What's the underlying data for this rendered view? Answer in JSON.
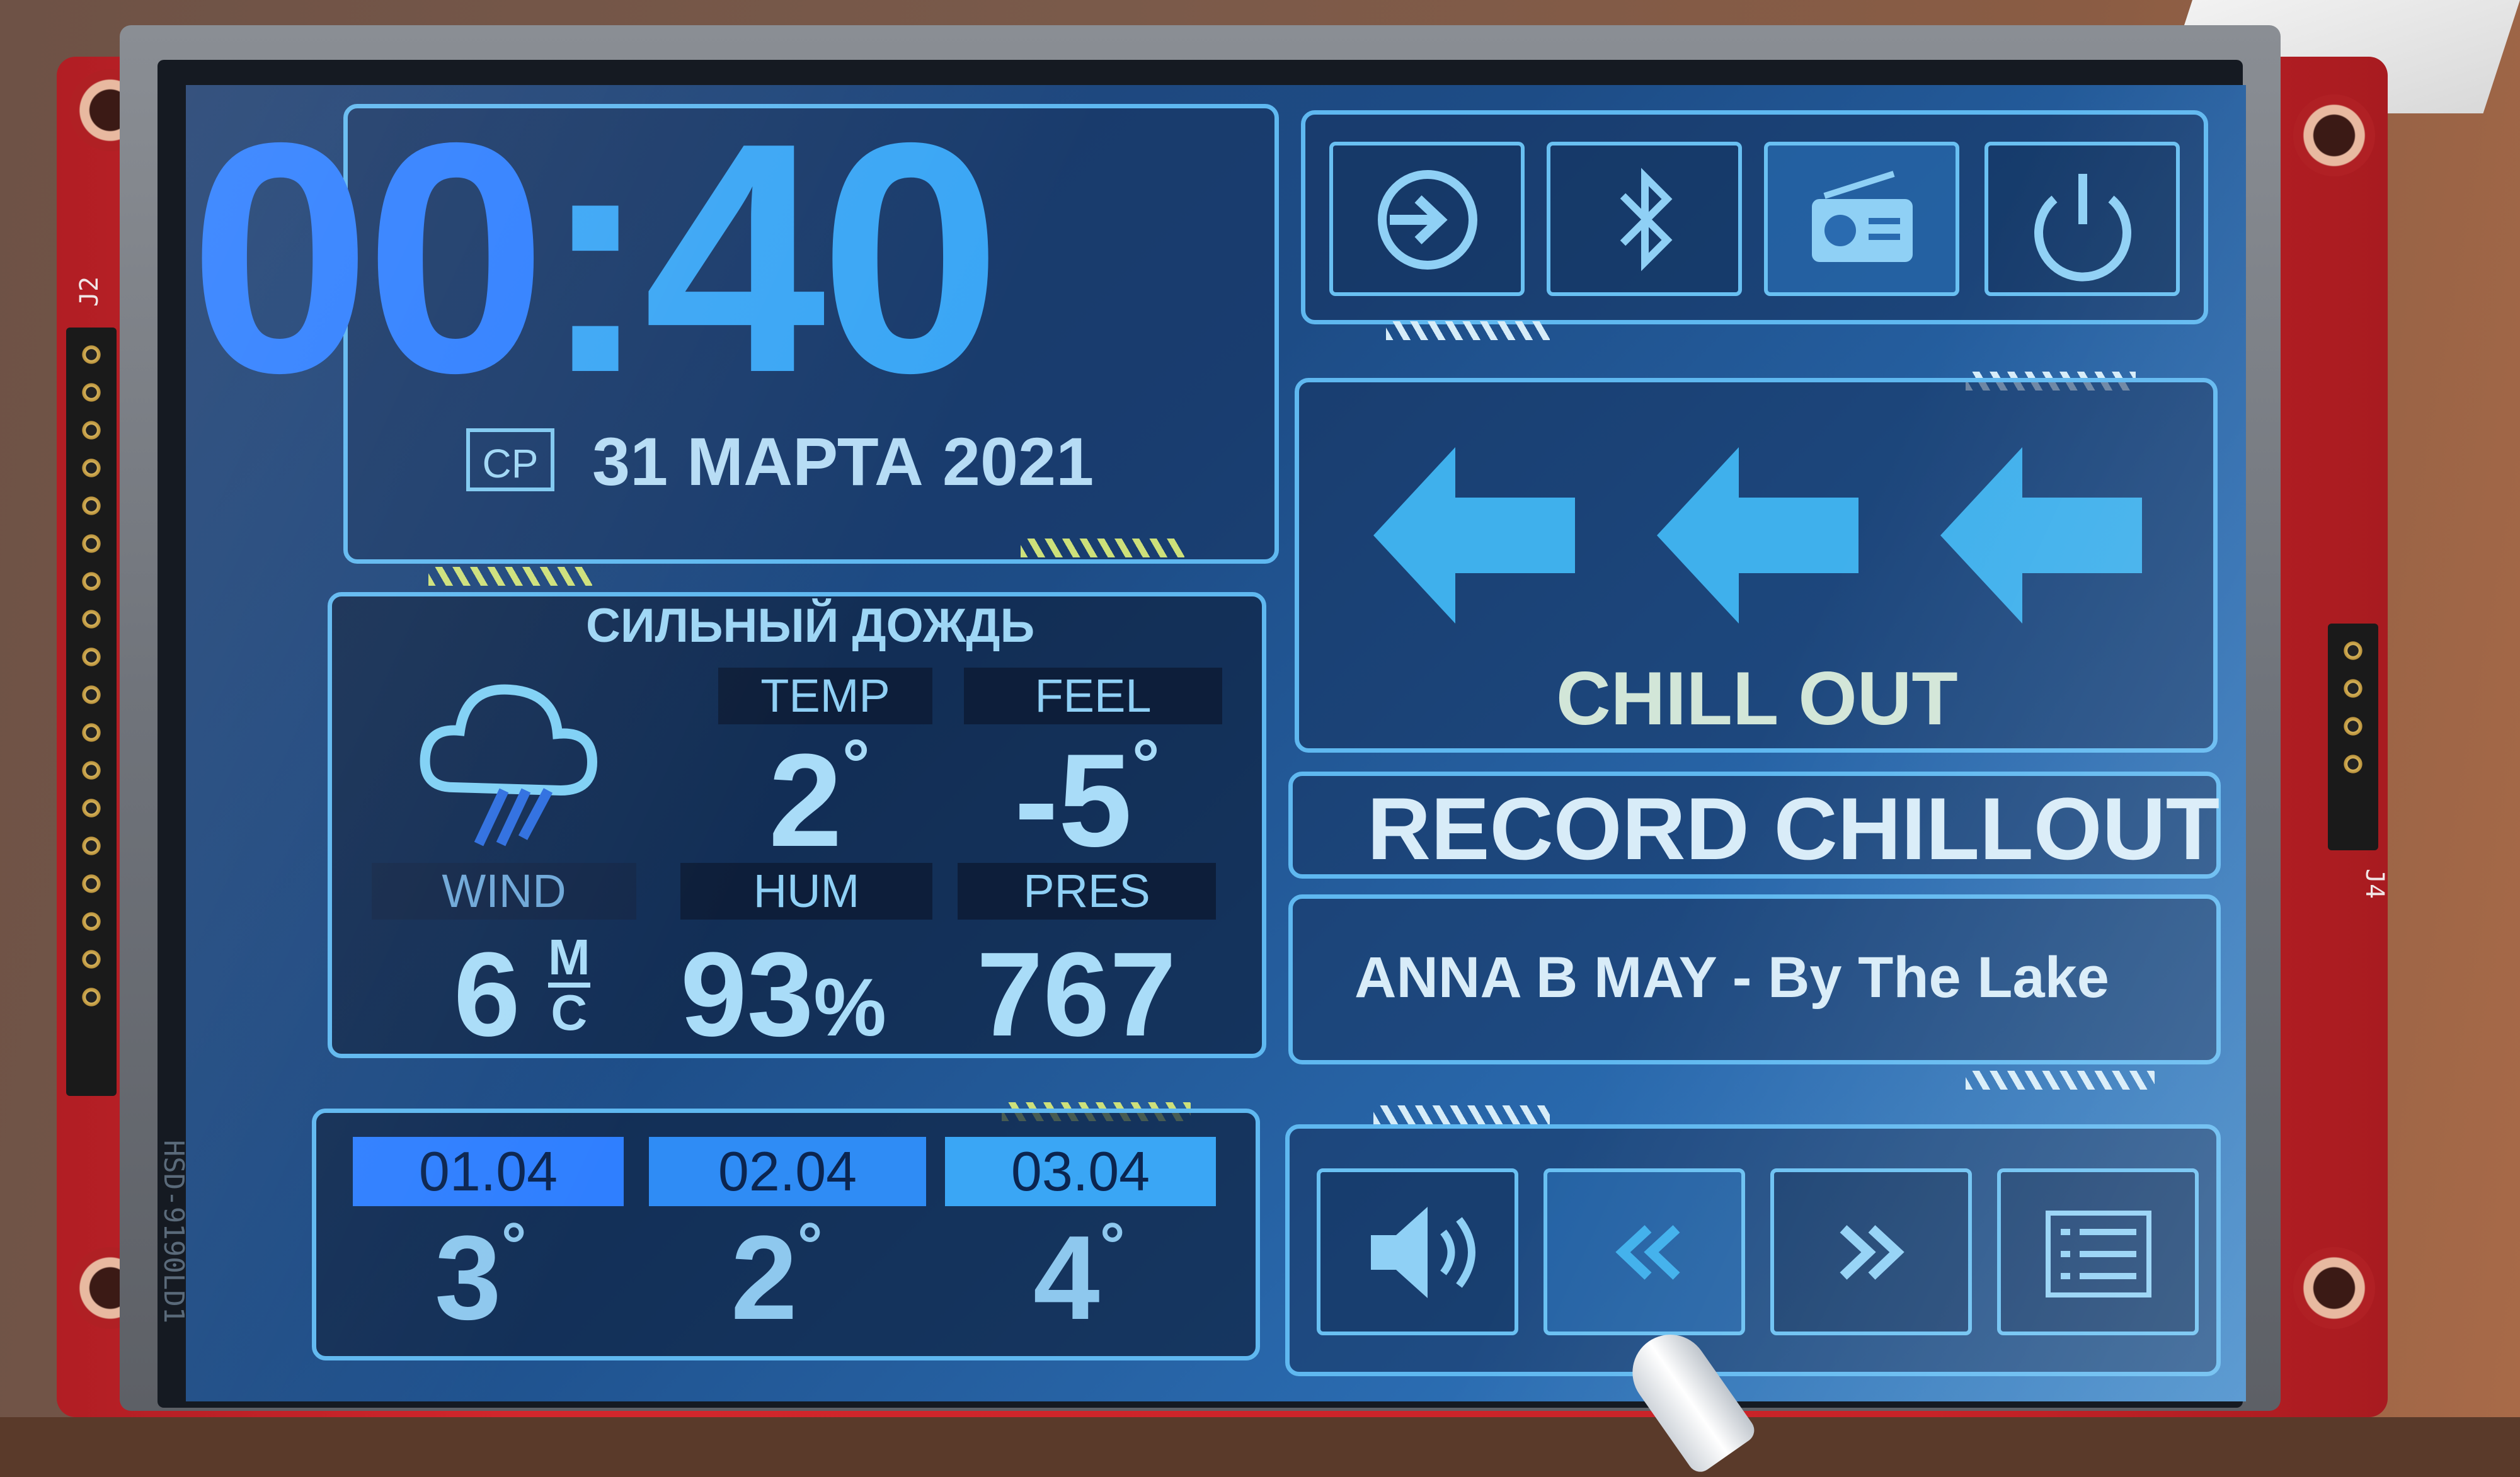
{
  "clock": {
    "hours": "00",
    "sep": ":",
    "minutes": "40"
  },
  "date": {
    "weekday": "СР",
    "text": "31 МАРТА 2021"
  },
  "weather": {
    "condition": "СИЛЬНЫЙ ДОЖДЬ",
    "icon": "rain-cloud-icon",
    "temp": {
      "label": "TEMP",
      "value": "2",
      "unit": "°"
    },
    "feel": {
      "label": "FEEL",
      "value": "-5",
      "unit": "°"
    },
    "wind": {
      "label": "WIND",
      "value": "6",
      "unit_top": "М",
      "unit_bottom": "С"
    },
    "hum": {
      "label": "HUM",
      "value": "93",
      "unit": "%"
    },
    "pres": {
      "label": "PRES",
      "value": "767"
    }
  },
  "forecast": [
    {
      "date": "01.04",
      "temp": "3",
      "unit": "°",
      "color": "#2f7fff"
    },
    {
      "date": "02.04",
      "temp": "2",
      "unit": "°",
      "color": "#2f8cf5"
    },
    {
      "date": "03.04",
      "temp": "4",
      "unit": "°",
      "color": "#3aa6f5"
    }
  ],
  "top_buttons": [
    "input-icon",
    "bluetooth-icon",
    "radio-icon",
    "power-icon"
  ],
  "station": {
    "genre": "CHILL OUT",
    "name": "RECORD CHILLOUT",
    "track": "ANNA B MAY - By The Lake"
  },
  "bottom_buttons": [
    "volume-icon",
    "rewind-icon",
    "fast-forward-icon",
    "playlist-icon"
  ],
  "board": {
    "label_left": "J2",
    "label_right": "J4",
    "label_bottom": "HSD-9190LD1"
  },
  "colors": {
    "accent": "#3aa6f5",
    "clock_hours": "#2f7fff",
    "panel_border": "#5fb8f0",
    "pcb": "#c82328"
  }
}
